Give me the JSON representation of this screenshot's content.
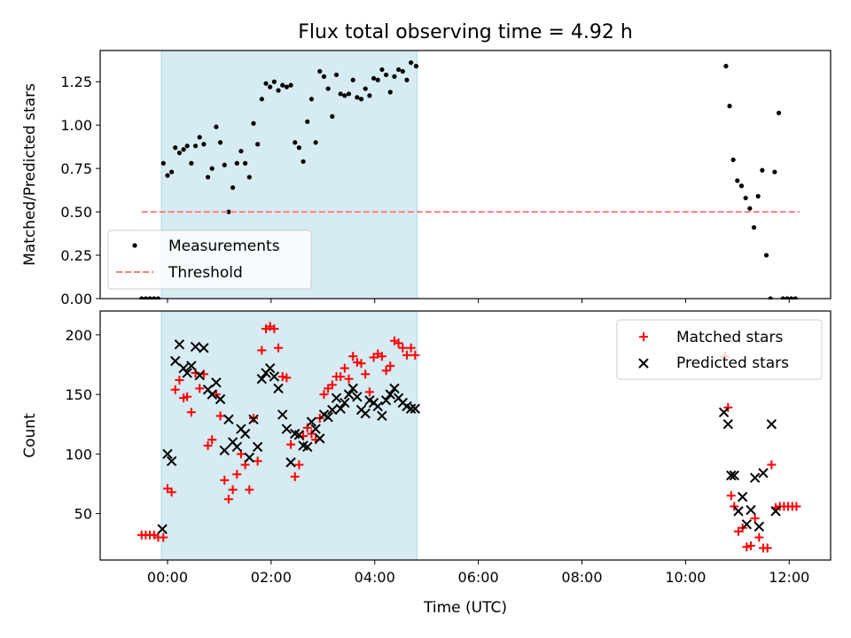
{
  "figure_title": "Flux total observing time = 4.92 h",
  "xlabel": "Time (UTC)",
  "x_ticks": [
    {
      "t": 0,
      "label": "00:00"
    },
    {
      "t": 2,
      "label": "02:00"
    },
    {
      "t": 4,
      "label": "04:00"
    },
    {
      "t": 6,
      "label": "06:00"
    },
    {
      "t": 8,
      "label": "08:00"
    },
    {
      "t": 10,
      "label": "10:00"
    },
    {
      "t": 12,
      "label": "12:00"
    }
  ],
  "colors": {
    "measurements": "#000000",
    "threshold": "#ff7f7f",
    "matched": "#ff0000",
    "predicted": "#000000",
    "span": "#add8e6"
  },
  "chart_data": [
    {
      "type": "scatter",
      "ylabel": "Matched/Predicted stars",
      "xlim": [
        -1.3,
        12.8
      ],
      "ylim": [
        0,
        1.43
      ],
      "y_ticks": [
        "0.00",
        "0.25",
        "0.50",
        "0.75",
        "1.00",
        "1.25"
      ],
      "shaded_span": [
        -0.12,
        4.82
      ],
      "legend_position": "lower-left",
      "series": [
        {
          "name": "Measurements",
          "marker": "dot",
          "points": [
            [
              -0.5,
              0.0
            ],
            [
              -0.42,
              0.0
            ],
            [
              -0.34,
              0.0
            ],
            [
              -0.26,
              0.0
            ],
            [
              -0.18,
              0.0
            ],
            [
              -0.08,
              0.78
            ],
            [
              0.0,
              0.71
            ],
            [
              0.08,
              0.73
            ],
            [
              0.15,
              0.87
            ],
            [
              0.23,
              0.84
            ],
            [
              0.31,
              0.86
            ],
            [
              0.38,
              0.88
            ],
            [
              0.46,
              0.78
            ],
            [
              0.54,
              0.88
            ],
            [
              0.62,
              0.93
            ],
            [
              0.7,
              0.89
            ],
            [
              0.78,
              0.7
            ],
            [
              0.86,
              0.75
            ],
            [
              0.94,
              0.99
            ],
            [
              1.02,
              0.9
            ],
            [
              1.1,
              0.77
            ],
            [
              1.18,
              0.5
            ],
            [
              1.26,
              0.64
            ],
            [
              1.34,
              0.78
            ],
            [
              1.42,
              0.85
            ],
            [
              1.5,
              0.78
            ],
            [
              1.58,
              0.7
            ],
            [
              1.66,
              1.01
            ],
            [
              1.74,
              0.89
            ],
            [
              1.82,
              1.15
            ],
            [
              1.9,
              1.24
            ],
            [
              1.98,
              1.22
            ],
            [
              2.06,
              1.25
            ],
            [
              2.14,
              1.2
            ],
            [
              2.22,
              1.23
            ],
            [
              2.3,
              1.22
            ],
            [
              2.38,
              1.23
            ],
            [
              2.46,
              0.9
            ],
            [
              2.54,
              0.87
            ],
            [
              2.62,
              0.79
            ],
            [
              2.7,
              1.02
            ],
            [
              2.78,
              1.15
            ],
            [
              2.86,
              0.9
            ],
            [
              2.94,
              1.31
            ],
            [
              3.02,
              1.28
            ],
            [
              3.1,
              1.21
            ],
            [
              3.18,
              1.05
            ],
            [
              3.26,
              1.29
            ],
            [
              3.34,
              1.18
            ],
            [
              3.42,
              1.17
            ],
            [
              3.5,
              1.18
            ],
            [
              3.58,
              1.26
            ],
            [
              3.66,
              1.16
            ],
            [
              3.74,
              1.15
            ],
            [
              3.82,
              1.21
            ],
            [
              3.9,
              1.17
            ],
            [
              3.98,
              1.27
            ],
            [
              4.06,
              1.26
            ],
            [
              4.14,
              1.32
            ],
            [
              4.22,
              1.29
            ],
            [
              4.3,
              1.19
            ],
            [
              4.38,
              1.28
            ],
            [
              4.46,
              1.32
            ],
            [
              4.54,
              1.31
            ],
            [
              4.62,
              1.26
            ],
            [
              4.7,
              1.36
            ],
            [
              4.8,
              1.34
            ],
            [
              10.78,
              1.34
            ],
            [
              10.85,
              1.11
            ],
            [
              10.92,
              0.8
            ],
            [
              11.0,
              0.68
            ],
            [
              11.08,
              0.65
            ],
            [
              11.16,
              0.58
            ],
            [
              11.24,
              0.52
            ],
            [
              11.32,
              0.41
            ],
            [
              11.4,
              0.59
            ],
            [
              11.48,
              0.74
            ],
            [
              11.56,
              0.25
            ],
            [
              11.64,
              0.0
            ],
            [
              11.72,
              0.73
            ],
            [
              11.8,
              1.07
            ],
            [
              11.88,
              0.0
            ],
            [
              11.96,
              0.0
            ],
            [
              12.04,
              0.0
            ],
            [
              12.12,
              0.0
            ]
          ]
        },
        {
          "name": "Threshold",
          "style": "dashed-line",
          "points": [
            [
              -0.5,
              0.5
            ],
            [
              12.2,
              0.5
            ]
          ]
        }
      ]
    },
    {
      "type": "scatter",
      "ylabel": "Count",
      "xlim": [
        -1.3,
        12.8
      ],
      "ylim": [
        11,
        220
      ],
      "y_ticks": [
        "50",
        "100",
        "150",
        "200"
      ],
      "shaded_span": [
        -0.12,
        4.82
      ],
      "legend_position": "upper-right",
      "series": [
        {
          "name": "Matched stars",
          "marker": "plus",
          "points": [
            [
              -0.5,
              32
            ],
            [
              -0.42,
              32
            ],
            [
              -0.34,
              32
            ],
            [
              -0.26,
              32
            ],
            [
              -0.18,
              30
            ],
            [
              -0.08,
              30
            ],
            [
              0.0,
              71
            ],
            [
              0.08,
              68
            ],
            [
              0.15,
              154
            ],
            [
              0.23,
              162
            ],
            [
              0.31,
              147
            ],
            [
              0.38,
              148
            ],
            [
              0.46,
              135
            ],
            [
              0.54,
              168
            ],
            [
              0.62,
              155
            ],
            [
              0.7,
              167
            ],
            [
              0.78,
              107
            ],
            [
              0.86,
              112
            ],
            [
              0.94,
              150
            ],
            [
              1.02,
              132
            ],
            [
              1.1,
              78
            ],
            [
              1.18,
              62
            ],
            [
              1.26,
              70
            ],
            [
              1.34,
              83
            ],
            [
              1.42,
              100
            ],
            [
              1.5,
              91
            ],
            [
              1.58,
              70
            ],
            [
              1.66,
              130
            ],
            [
              1.74,
              94
            ],
            [
              1.82,
              187
            ],
            [
              1.9,
              205
            ],
            [
              1.98,
              207
            ],
            [
              2.06,
              205
            ],
            [
              2.14,
              189
            ],
            [
              2.22,
              165
            ],
            [
              2.3,
              164
            ],
            [
              2.38,
              108
            ],
            [
              2.46,
              81
            ],
            [
              2.54,
              91
            ],
            [
              2.62,
              115
            ],
            [
              2.7,
              122
            ],
            [
              2.78,
              117
            ],
            [
              2.86,
              112
            ],
            [
              2.94,
              130
            ],
            [
              3.02,
              150
            ],
            [
              3.1,
              155
            ],
            [
              3.18,
              158
            ],
            [
              3.26,
              165
            ],
            [
              3.34,
              165
            ],
            [
              3.42,
              172
            ],
            [
              3.5,
              163
            ],
            [
              3.58,
              182
            ],
            [
              3.66,
              177
            ],
            [
              3.74,
              176
            ],
            [
              3.82,
              167
            ],
            [
              3.9,
              152
            ],
            [
              3.98,
              181
            ],
            [
              4.06,
              184
            ],
            [
              4.14,
              182
            ],
            [
              4.22,
              170
            ],
            [
              4.3,
              174
            ],
            [
              4.38,
              195
            ],
            [
              4.46,
              193
            ],
            [
              4.54,
              189
            ],
            [
              4.62,
              183
            ],
            [
              4.7,
              189
            ],
            [
              4.78,
              183
            ],
            [
              10.76,
              182
            ],
            [
              10.82,
              139
            ],
            [
              10.88,
              65
            ],
            [
              10.94,
              56
            ],
            [
              11.02,
              35
            ],
            [
              11.1,
              38
            ],
            [
              11.18,
              22
            ],
            [
              11.26,
              23
            ],
            [
              11.34,
              46
            ],
            [
              11.42,
              30
            ],
            [
              11.5,
              21
            ],
            [
              11.58,
              21
            ],
            [
              11.66,
              91
            ],
            [
              11.74,
              55
            ],
            [
              11.82,
              56
            ],
            [
              11.9,
              56
            ],
            [
              11.98,
              56
            ],
            [
              12.06,
              56
            ],
            [
              12.14,
              56
            ]
          ]
        },
        {
          "name": "Predicted stars",
          "marker": "x",
          "points": [
            [
              -0.1,
              37
            ],
            [
              0.0,
              100
            ],
            [
              0.08,
              94
            ],
            [
              0.15,
              178
            ],
            [
              0.23,
              192
            ],
            [
              0.31,
              172
            ],
            [
              0.38,
              168
            ],
            [
              0.46,
              174
            ],
            [
              0.54,
              190
            ],
            [
              0.62,
              166
            ],
            [
              0.7,
              189
            ],
            [
              0.78,
              154
            ],
            [
              0.86,
              150
            ],
            [
              0.94,
              160
            ],
            [
              1.02,
              146
            ],
            [
              1.1,
              103
            ],
            [
              1.18,
              129
            ],
            [
              1.26,
              110
            ],
            [
              1.34,
              106
            ],
            [
              1.42,
              121
            ],
            [
              1.5,
              117
            ],
            [
              1.58,
              97
            ],
            [
              1.66,
              129
            ],
            [
              1.74,
              106
            ],
            [
              1.82,
              163
            ],
            [
              1.9,
              168
            ],
            [
              1.98,
              172
            ],
            [
              2.06,
              165
            ],
            [
              2.14,
              155
            ],
            [
              2.22,
              133
            ],
            [
              2.3,
              121
            ],
            [
              2.38,
              93
            ],
            [
              2.46,
              117
            ],
            [
              2.54,
              116
            ],
            [
              2.62,
              107
            ],
            [
              2.7,
              106
            ],
            [
              2.78,
              127
            ],
            [
              2.86,
              121
            ],
            [
              2.94,
              113
            ],
            [
              3.02,
              133
            ],
            [
              3.1,
              131
            ],
            [
              3.18,
              137
            ],
            [
              3.26,
              147
            ],
            [
              3.34,
              138
            ],
            [
              3.42,
              143
            ],
            [
              3.5,
              150
            ],
            [
              3.58,
              155
            ],
            [
              3.66,
              148
            ],
            [
              3.74,
              137
            ],
            [
              3.82,
              134
            ],
            [
              3.9,
              145
            ],
            [
              3.98,
              143
            ],
            [
              4.06,
              140
            ],
            [
              4.14,
              132
            ],
            [
              4.22,
              145
            ],
            [
              4.3,
              150
            ],
            [
              4.38,
              155
            ],
            [
              4.46,
              147
            ],
            [
              4.54,
              143
            ],
            [
              4.62,
              140
            ],
            [
              4.7,
              138
            ],
            [
              4.78,
              138
            ],
            [
              10.74,
              135
            ],
            [
              10.82,
              125
            ],
            [
              10.88,
              82
            ],
            [
              10.94,
              82
            ],
            [
              11.02,
              52
            ],
            [
              11.1,
              64
            ],
            [
              11.18,
              41
            ],
            [
              11.26,
              53
            ],
            [
              11.34,
              80
            ],
            [
              11.42,
              39
            ],
            [
              11.5,
              84
            ],
            [
              11.66,
              125
            ],
            [
              11.74,
              52
            ]
          ]
        }
      ]
    }
  ]
}
